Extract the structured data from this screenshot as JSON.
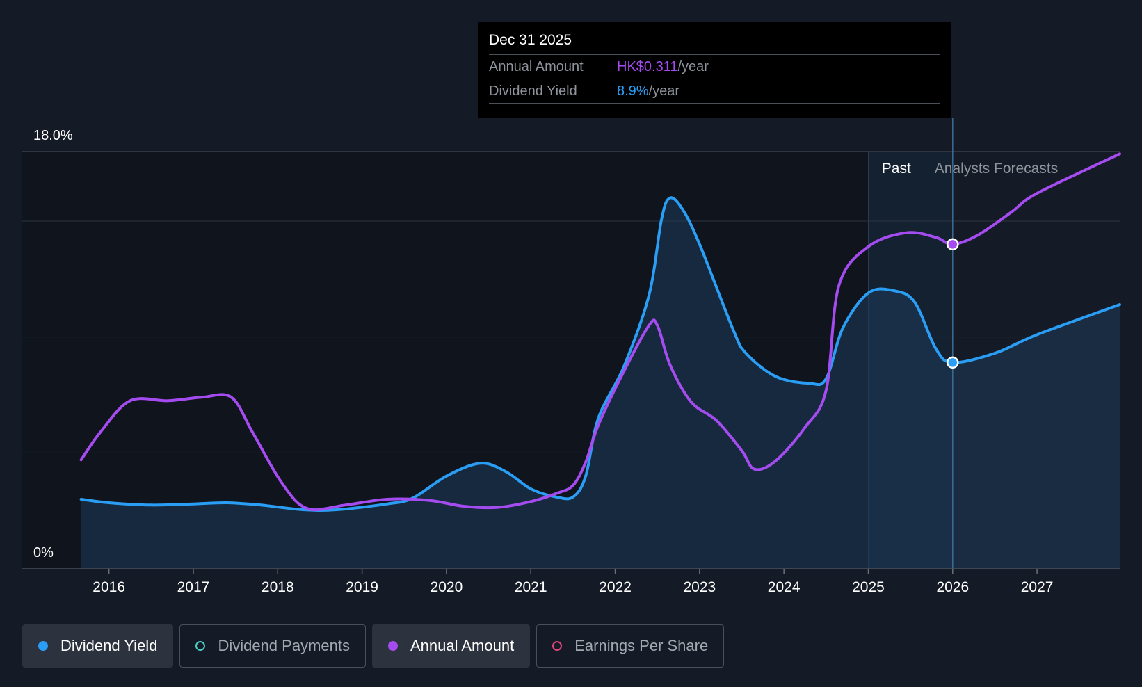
{
  "tooltip": {
    "date": "Dec 31 2025",
    "annual_amount_label": "Annual Amount",
    "annual_amount_value": "HK$0.311",
    "annual_amount_unit": "/year",
    "dividend_yield_label": "Dividend Yield",
    "dividend_yield_value": "8.9%",
    "dividend_yield_unit": "/year"
  },
  "legend": [
    {
      "label": "Dividend Yield",
      "color": "#2a9df4",
      "style": "filled",
      "active": true
    },
    {
      "label": "Dividend Payments",
      "color": "#4ecdc4",
      "style": "hollow",
      "active": false
    },
    {
      "label": "Annual Amount",
      "color": "#a54cf0",
      "style": "filled",
      "active": true
    },
    {
      "label": "Earnings Per Share",
      "color": "#e0457b",
      "style": "hollow",
      "active": false
    }
  ],
  "colors": {
    "background": "#151b26",
    "dividend_yield": "#2a9df4",
    "annual_amount": "#a54cf0",
    "grid": "#3a404a"
  },
  "chart_data": {
    "type": "line",
    "y_tick_labels": [
      "18.0%",
      "0%"
    ],
    "ylim": [
      0,
      18
    ],
    "xlim": [
      2015.5,
      2027.98
    ],
    "x_tick_labels": [
      "2016",
      "2017",
      "2018",
      "2019",
      "2020",
      "2021",
      "2022",
      "2023",
      "2024",
      "2025",
      "2026",
      "2027"
    ],
    "x_ticks": [
      2016,
      2017,
      2018,
      2019,
      2020,
      2021,
      2022,
      2023,
      2024,
      2025,
      2026,
      2027
    ],
    "grid_values": [
      5,
      10,
      15,
      18
    ],
    "grid": true,
    "region_labels": {
      "past": "Past",
      "forecast": "Analysts Forecasts"
    },
    "past_shade": [
      2025.0,
      2026.0
    ],
    "forecast_start": 2026.0,
    "highlight_x": 2026.0,
    "series": [
      {
        "name": "Dividend Yield",
        "unit": "% per year",
        "filled": true,
        "points": [
          [
            2015.67,
            3.0
          ],
          [
            2016.0,
            2.85
          ],
          [
            2016.5,
            2.75
          ],
          [
            2017.0,
            2.8
          ],
          [
            2017.4,
            2.85
          ],
          [
            2017.8,
            2.75
          ],
          [
            2018.3,
            2.55
          ],
          [
            2018.7,
            2.55
          ],
          [
            2019.3,
            2.8
          ],
          [
            2019.6,
            3.05
          ],
          [
            2020.0,
            4.0
          ],
          [
            2020.4,
            4.55
          ],
          [
            2020.7,
            4.2
          ],
          [
            2021.0,
            3.45
          ],
          [
            2021.3,
            3.1
          ],
          [
            2021.5,
            3.1
          ],
          [
            2021.65,
            4.0
          ],
          [
            2021.8,
            6.5
          ],
          [
            2022.1,
            8.7
          ],
          [
            2022.4,
            11.8
          ],
          [
            2022.55,
            15.1
          ],
          [
            2022.65,
            16.0
          ],
          [
            2022.8,
            15.5
          ],
          [
            2023.0,
            14.0
          ],
          [
            2023.4,
            10.3
          ],
          [
            2023.55,
            9.3
          ],
          [
            2023.9,
            8.3
          ],
          [
            2024.3,
            8.0
          ],
          [
            2024.5,
            8.2
          ],
          [
            2024.7,
            10.4
          ],
          [
            2025.0,
            11.9
          ],
          [
            2025.3,
            12.0
          ],
          [
            2025.55,
            11.5
          ],
          [
            2025.8,
            9.5
          ],
          [
            2026.0,
            8.9
          ],
          [
            2026.5,
            9.3
          ],
          [
            2027.0,
            10.1
          ],
          [
            2027.98,
            11.4
          ]
        ]
      },
      {
        "name": "Annual Amount",
        "unit": "HK$ per year",
        "filled": false,
        "points": [
          [
            2015.67,
            4.7
          ],
          [
            2015.9,
            5.9
          ],
          [
            2016.25,
            7.25
          ],
          [
            2016.7,
            7.25
          ],
          [
            2017.1,
            7.4
          ],
          [
            2017.45,
            7.4
          ],
          [
            2017.7,
            5.9
          ],
          [
            2018.05,
            3.7
          ],
          [
            2018.35,
            2.6
          ],
          [
            2018.8,
            2.75
          ],
          [
            2019.3,
            3.0
          ],
          [
            2019.8,
            2.95
          ],
          [
            2020.2,
            2.7
          ],
          [
            2020.6,
            2.65
          ],
          [
            2021.0,
            2.9
          ],
          [
            2021.3,
            3.25
          ],
          [
            2021.5,
            3.6
          ],
          [
            2021.65,
            4.6
          ],
          [
            2021.8,
            6.2
          ],
          [
            2022.1,
            8.5
          ],
          [
            2022.4,
            10.5
          ],
          [
            2022.5,
            10.5
          ],
          [
            2022.65,
            8.8
          ],
          [
            2022.9,
            7.2
          ],
          [
            2023.2,
            6.4
          ],
          [
            2023.5,
            5.1
          ],
          [
            2023.65,
            4.3
          ],
          [
            2023.9,
            4.65
          ],
          [
            2024.25,
            6.1
          ],
          [
            2024.5,
            7.7
          ],
          [
            2024.65,
            12.2
          ],
          [
            2025.0,
            13.9
          ],
          [
            2025.45,
            14.5
          ],
          [
            2025.8,
            14.3
          ],
          [
            2026.0,
            14.0
          ],
          [
            2026.3,
            14.4
          ],
          [
            2026.7,
            15.4
          ],
          [
            2027.0,
            16.2
          ],
          [
            2027.98,
            17.9
          ]
        ]
      }
    ]
  }
}
